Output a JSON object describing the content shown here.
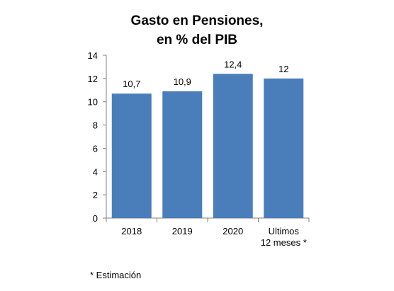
{
  "chart_data": {
    "type": "bar",
    "title_lines": [
      "Gasto en Pensiones,",
      "en % del PIB"
    ],
    "categories": [
      [
        "2018"
      ],
      [
        "2019"
      ],
      [
        "2020"
      ],
      [
        "Ultimos",
        "12 meses *"
      ]
    ],
    "values": [
      10.7,
      10.9,
      12.4,
      12.0
    ],
    "value_labels": [
      "10,7",
      "10,9",
      "12,4",
      "12"
    ],
    "ylim": [
      0,
      14
    ],
    "yticks": [
      "0",
      "2",
      "4",
      "6",
      "8",
      "10",
      "12",
      "14"
    ],
    "grid": false,
    "legend": "none",
    "bar_color": "#4a7ebb"
  },
  "footnote": "* Estimación"
}
